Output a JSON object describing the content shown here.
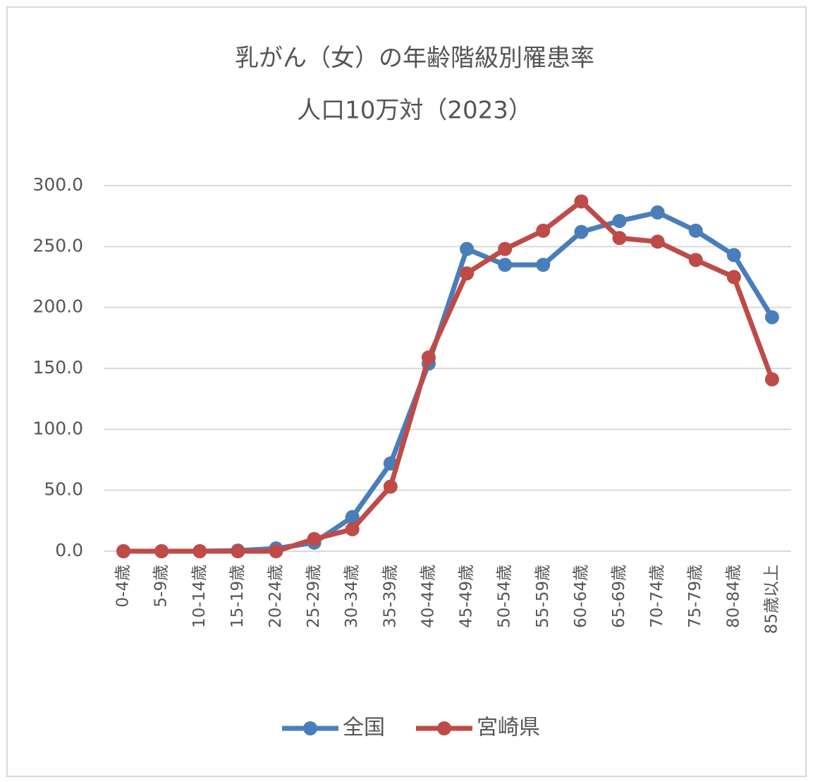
{
  "chart_data": {
    "type": "line",
    "title": "乳がん（女）の年齢階級別罹患率",
    "subtitle": "人口10万対（2023）",
    "categories": [
      "0-4歳",
      "5-9歳",
      "10-14歳",
      "15-19歳",
      "20-24歳",
      "25-29歳",
      "30-34歳",
      "35-39歳",
      "40-44歳",
      "45-49歳",
      "50-54歳",
      "55-59歳",
      "60-64歳",
      "65-69歳",
      "70-74歳",
      "75-79歳",
      "80-84歳",
      "85歳以上"
    ],
    "series": [
      {
        "name": "全国",
        "color": "#4a7ebb",
        "values": [
          0,
          0,
          0,
          0.5,
          2.3,
          7,
          28,
          72,
          154,
          248,
          235,
          235,
          262,
          271,
          278,
          263,
          243,
          192
        ]
      },
      {
        "name": "宮崎県",
        "color": "#be4b48",
        "values": [
          0,
          0,
          0,
          0,
          0,
          10,
          18,
          53,
          159,
          228,
          248,
          263,
          287,
          257,
          254,
          239,
          225,
          141
        ]
      }
    ],
    "ylim": [
      0,
      300
    ],
    "yticks": [
      {
        "value": 0,
        "label": "0.0"
      },
      {
        "value": 50,
        "label": "50.0"
      },
      {
        "value": 100,
        "label": "100.0"
      },
      {
        "value": 150,
        "label": "150.0"
      },
      {
        "value": 200,
        "label": "200.0"
      },
      {
        "value": 250,
        "label": "250.0"
      },
      {
        "value": 300,
        "label": "300.0"
      }
    ],
    "grid": true,
    "legend": "bottom"
  }
}
